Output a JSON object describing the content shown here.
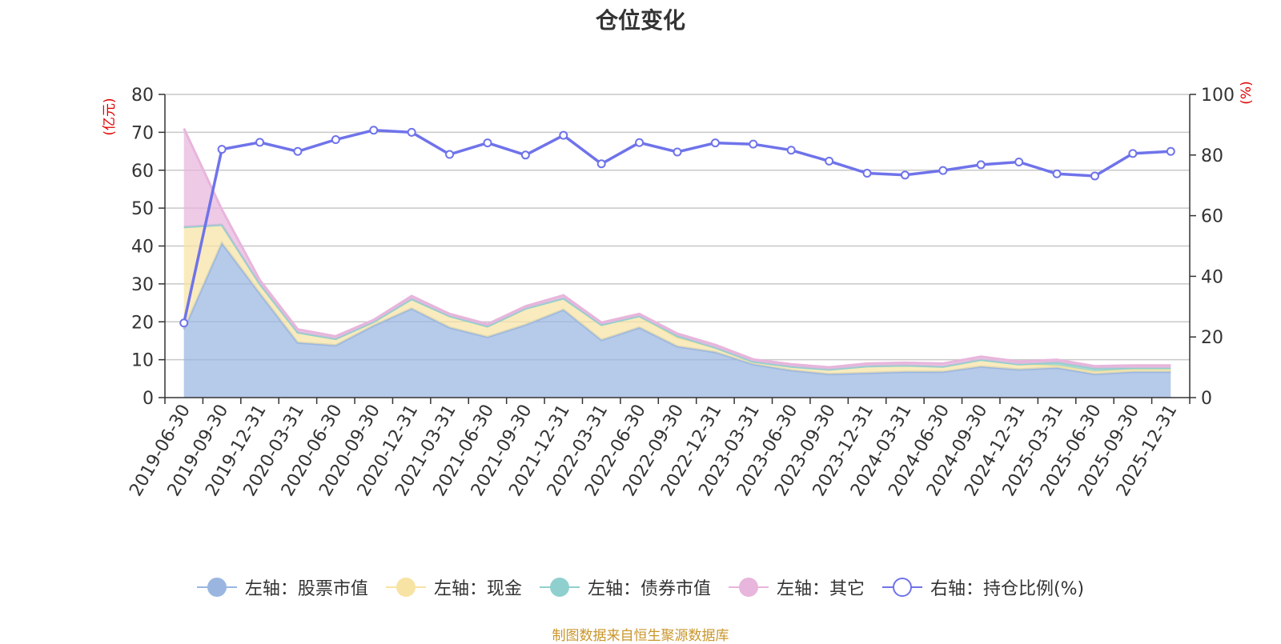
{
  "chart_data": {
    "type": "area",
    "title": "仓位变化",
    "left_axis": {
      "unit": "(亿元)",
      "ylim": [
        0,
        80
      ],
      "ticks": [
        0,
        10,
        20,
        30,
        40,
        50,
        60,
        70,
        80
      ]
    },
    "right_axis": {
      "unit": "(%)",
      "ylim": [
        0,
        100
      ],
      "ticks": [
        0,
        20,
        40,
        60,
        80,
        100
      ]
    },
    "categories": [
      "2019-06-30",
      "2019-09-30",
      "2019-12-31",
      "2020-03-31",
      "2020-06-30",
      "2020-09-30",
      "2020-12-31",
      "2021-03-31",
      "2021-06-30",
      "2021-09-30",
      "2021-12-31",
      "2022-03-31",
      "2022-06-30",
      "2022-09-30",
      "2022-12-31",
      "2023-03-31",
      "2023-06-30",
      "2023-09-30",
      "2023-12-31",
      "2024-03-31",
      "2024-06-30",
      "2024-09-30",
      "2024-12-31",
      "2025-03-31",
      "2025-06-30",
      "2025-09-30",
      "2025-12-31"
    ],
    "series": [
      {
        "name": "左轴：股票市值",
        "axis": "left",
        "kind": "stack-area",
        "color": "#9ab6e0",
        "values": [
          18.0,
          40.8,
          27.5,
          14.5,
          13.8,
          19.0,
          23.5,
          18.5,
          16.0,
          19.2,
          23.2,
          15.2,
          18.5,
          13.5,
          12.0,
          8.8,
          7.2,
          6.2,
          6.5,
          6.8,
          6.8,
          8.2,
          7.4,
          7.9,
          6.2,
          6.8,
          6.8
        ]
      },
      {
        "name": "左轴：现金",
        "axis": "left",
        "kind": "stack-area",
        "color": "#f7e3a3",
        "values": [
          27.0,
          4.8,
          2.5,
          2.7,
          1.7,
          1.0,
          2.5,
          3.0,
          2.8,
          4.3,
          3.0,
          4.0,
          3.0,
          2.3,
          1.2,
          0.7,
          1.0,
          1.2,
          1.8,
          1.7,
          1.4,
          1.8,
          1.4,
          0.6,
          0.7,
          0.7,
          0.7
        ]
      },
      {
        "name": "左轴：债券市值",
        "axis": "left",
        "kind": "stack-area",
        "color": "#8fd0cf",
        "values": [
          0,
          0,
          0,
          0,
          0,
          0,
          0,
          0,
          0,
          0,
          0,
          0,
          0,
          0.5,
          0,
          0,
          0,
          0,
          0,
          0,
          0,
          0,
          0,
          0.8,
          0.8,
          0.3,
          0.3
        ]
      },
      {
        "name": "左轴：其它",
        "axis": "left",
        "kind": "stack-area",
        "color": "#e8b5dc",
        "values": [
          26.0,
          4.0,
          1.0,
          0.8,
          0.7,
          0.5,
          0.8,
          0.6,
          0.6,
          0.6,
          0.8,
          0.6,
          0.6,
          0.6,
          0.7,
          0.6,
          0.6,
          0.6,
          0.7,
          0.7,
          0.8,
          0.8,
          0.7,
          0.7,
          0.6,
          0.7,
          0.7
        ]
      },
      {
        "name": "右轴：持仓比例(%)",
        "axis": "right",
        "kind": "line",
        "color": "#6f73ea",
        "values": [
          24.6,
          81.9,
          84.2,
          81.2,
          85.1,
          88.2,
          87.5,
          80.2,
          84.0,
          80.0,
          86.5,
          77.1,
          84.1,
          81.0,
          84.0,
          83.6,
          81.6,
          78.0,
          74.0,
          73.4,
          74.9,
          76.8,
          77.7,
          73.8,
          73.1,
          80.5,
          81.2
        ]
      }
    ]
  },
  "legend": [
    {
      "label": "左轴：股票市值",
      "color": "#9ab6e0",
      "hollow": false
    },
    {
      "label": "左轴：现金",
      "color": "#f7e3a3",
      "hollow": false
    },
    {
      "label": "左轴：债券市值",
      "color": "#8fd0cf",
      "hollow": false
    },
    {
      "label": "左轴：其它",
      "color": "#e8b5dc",
      "hollow": false
    },
    {
      "label": "右轴：持仓比例(%)",
      "color": "#6f73ea",
      "hollow": true
    }
  ],
  "footer": "制图数据来自恒生聚源数据库"
}
